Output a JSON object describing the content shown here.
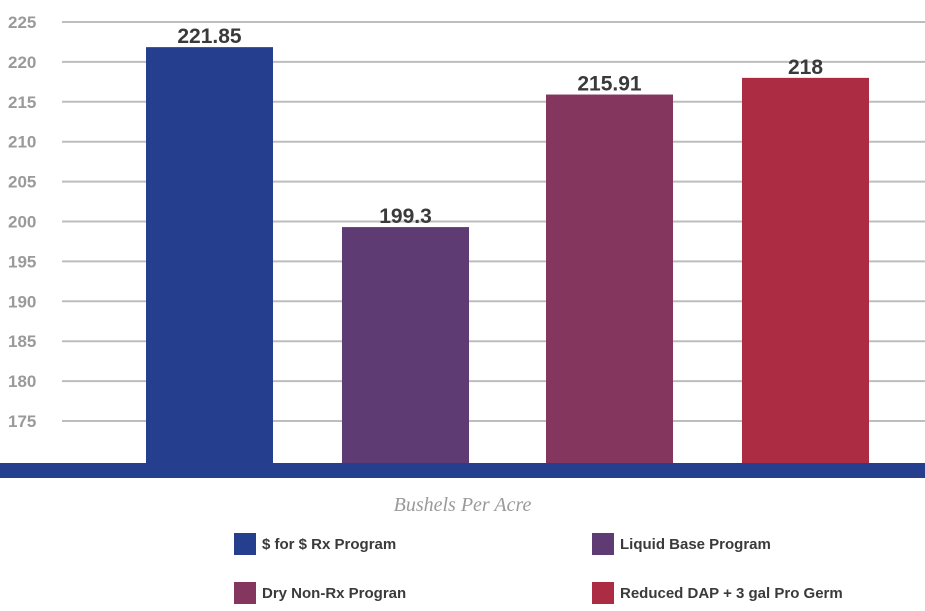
{
  "chart_data": {
    "type": "bar",
    "categories": [
      "$ for $ Rx Program",
      "Liquid Base Program",
      "Dry Non-Rx Progran",
      "Reduced DAP + 3 gal Pro Germ"
    ],
    "values": [
      221.85,
      199.3,
      215.91,
      218
    ],
    "value_labels": [
      "221.85",
      "199.3",
      "215.91",
      "218"
    ],
    "colors": [
      "#253f8e",
      "#5f3b74",
      "#85365f",
      "#ac2c43"
    ],
    "baseline_color": "#253f8e",
    "grid_color": "#bdbdbd",
    "xlabel": "Bushels Per Acre",
    "ylabel": "",
    "title": "",
    "ylim": [
      170,
      225
    ],
    "yticks": [
      175,
      180,
      185,
      190,
      195,
      200,
      205,
      210,
      215,
      220,
      225
    ],
    "grid": true,
    "legend_position": "bottom"
  }
}
